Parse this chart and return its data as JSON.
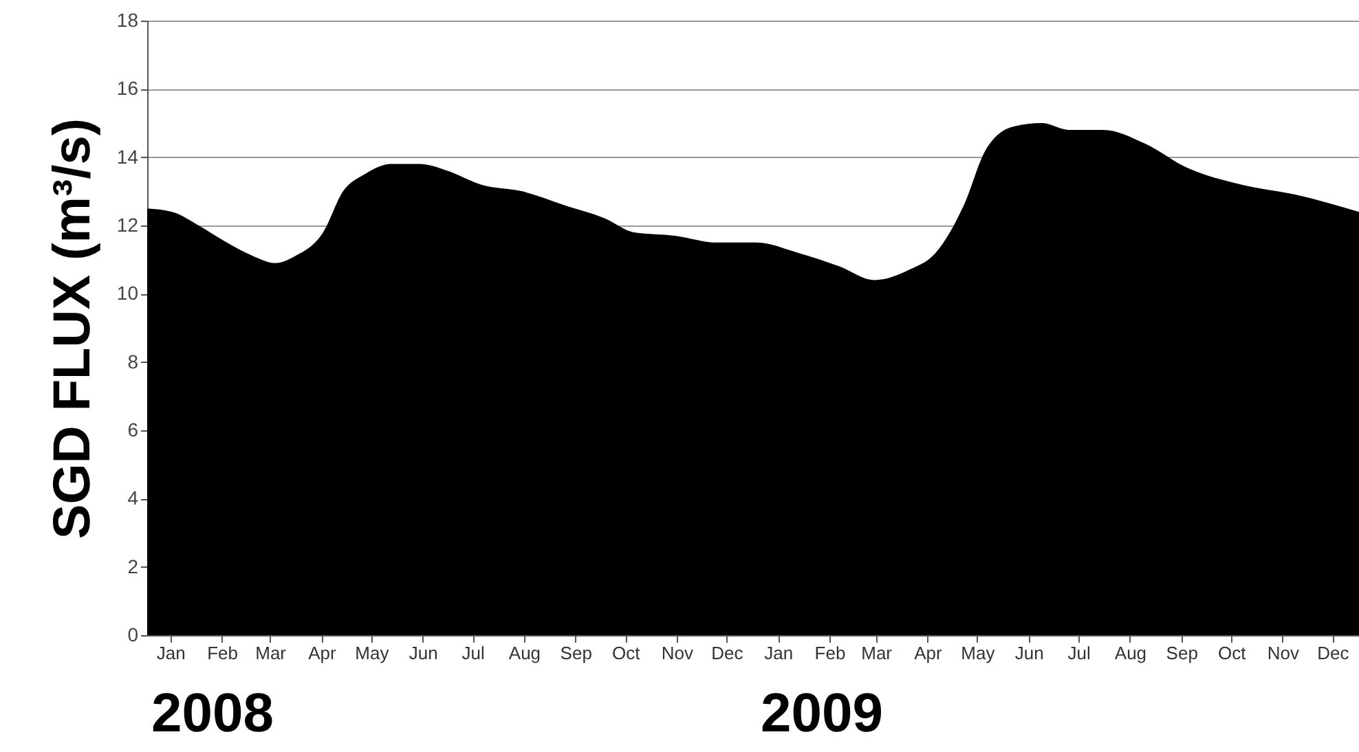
{
  "chart_data": {
    "type": "area",
    "ylabel": "SGD FLUX (m³/s)",
    "x": [
      "2008-01-01",
      "2008-01-16",
      "2008-02-01",
      "2008-02-18",
      "2008-03-05",
      "2008-03-18",
      "2008-03-30",
      "2008-04-16",
      "2008-04-28",
      "2008-05-11",
      "2008-05-27",
      "2008-06-13",
      "2008-06-30",
      "2008-07-20",
      "2008-08-14",
      "2008-09-08",
      "2008-10-03",
      "2008-10-20",
      "2008-11-14",
      "2008-12-09",
      "2009-01-02",
      "2009-01-27",
      "2009-02-21",
      "2009-03-14",
      "2009-04-04",
      "2009-04-20",
      "2009-05-07",
      "2009-05-20",
      "2009-06-06",
      "2009-06-23",
      "2009-07-09",
      "2009-07-30",
      "2009-08-24",
      "2009-09-18",
      "2009-10-21",
      "2009-11-23",
      "2009-12-31"
    ],
    "series": [
      {
        "color": "#000000",
        "values": [
          12.5,
          12.4,
          12.0,
          11.5,
          11.1,
          10.9,
          11.1,
          11.8,
          13.0,
          13.5,
          13.8,
          13.8,
          13.6,
          13.2,
          13.0,
          12.6,
          12.2,
          11.8,
          11.7,
          11.5,
          11.5,
          11.2,
          10.8,
          10.4,
          10.7,
          11.2,
          12.6,
          14.2,
          14.9,
          15.0,
          14.8,
          14.8,
          14.4,
          13.7,
          13.2,
          12.9,
          12.4
        ]
      }
    ],
    "xlim": [
      "2008-01-01",
      "2009-12-31"
    ],
    "xticks": [
      {
        "value": "2008-01-15",
        "label": "Jan"
      },
      {
        "value": "2008-02-15",
        "label": "Feb"
      },
      {
        "value": "2008-03-15",
        "label": "Mar"
      },
      {
        "value": "2008-04-15",
        "label": "Apr"
      },
      {
        "value": "2008-05-15",
        "label": "May"
      },
      {
        "value": "2008-06-15",
        "label": "Jun"
      },
      {
        "value": "2008-07-15",
        "label": "Jul"
      },
      {
        "value": "2008-08-15",
        "label": "Aug"
      },
      {
        "value": "2008-09-15",
        "label": "Sep"
      },
      {
        "value": "2008-10-15",
        "label": "Oct"
      },
      {
        "value": "2008-11-15",
        "label": "Nov"
      },
      {
        "value": "2008-12-15",
        "label": "Dec"
      },
      {
        "value": "2009-01-15",
        "label": "Jan"
      },
      {
        "value": "2009-02-15",
        "label": "Feb"
      },
      {
        "value": "2009-03-15",
        "label": "Mar"
      },
      {
        "value": "2009-04-15",
        "label": "Apr"
      },
      {
        "value": "2009-05-15",
        "label": "May"
      },
      {
        "value": "2009-06-15",
        "label": "Jun"
      },
      {
        "value": "2009-07-15",
        "label": "Jul"
      },
      {
        "value": "2009-08-15",
        "label": "Aug"
      },
      {
        "value": "2009-09-15",
        "label": "Sep"
      },
      {
        "value": "2009-10-15",
        "label": "Oct"
      },
      {
        "value": "2009-11-15",
        "label": "Nov"
      },
      {
        "value": "2009-12-15",
        "label": "Dec"
      }
    ],
    "ylim": [
      0,
      18
    ],
    "yticks": [
      0,
      2,
      4,
      6,
      8,
      10,
      12,
      14,
      16,
      18
    ],
    "grid": "y",
    "annotations": [
      "2008",
      "2009"
    ]
  }
}
